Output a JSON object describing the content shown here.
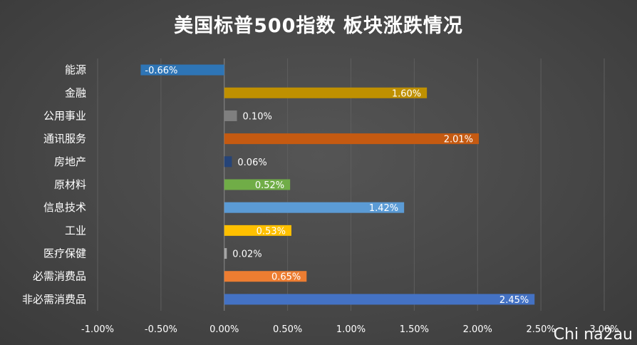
{
  "chart_data": {
    "type": "bar",
    "orientation": "horizontal",
    "title": "美国标普500指数 板块涨跌情况",
    "xlabel": "",
    "ylabel": "",
    "xlim": [
      -0.01,
      0.03
    ],
    "grid": true,
    "legend": "none",
    "ticks": [
      "-1.00%",
      "-0.50%",
      "0.00%",
      "0.50%",
      "1.00%",
      "1.50%",
      "2.00%",
      "2.50%",
      "3.00%"
    ],
    "tick_values": [
      -0.01,
      -0.005,
      0,
      0.005,
      0.01,
      0.015,
      0.02,
      0.025,
      0.03
    ],
    "bars": [
      {
        "category": "能源",
        "value": -0.0066,
        "label": "-0.66%",
        "color": "#2e75b6"
      },
      {
        "category": "金融",
        "value": 0.016,
        "label": "1.60%",
        "color": "#bf9000"
      },
      {
        "category": "公用事业",
        "value": 0.001,
        "label": "0.10%",
        "color": "#7f7f7f"
      },
      {
        "category": "通讯服务",
        "value": 0.0201,
        "label": "2.01%",
        "color": "#c55a11"
      },
      {
        "category": "房地产",
        "value": 0.0006,
        "label": "0.06%",
        "color": "#264478"
      },
      {
        "category": "原材料",
        "value": 0.0052,
        "label": "0.52%",
        "color": "#70ad47"
      },
      {
        "category": "信息技术",
        "value": 0.0142,
        "label": "1.42%",
        "color": "#5b9bd5"
      },
      {
        "category": "工业",
        "value": 0.0053,
        "label": "0.53%",
        "color": "#ffc000"
      },
      {
        "category": "医疗保健",
        "value": 0.0002,
        "label": "0.02%",
        "color": "#a5a5a5"
      },
      {
        "category": "必需消费品",
        "value": 0.0065,
        "label": "0.65%",
        "color": "#ed7d31"
      },
      {
        "category": "非必需消费品",
        "value": 0.0245,
        "label": "2.45%",
        "color": "#4472c4"
      }
    ]
  },
  "watermark": "Chi na2au"
}
